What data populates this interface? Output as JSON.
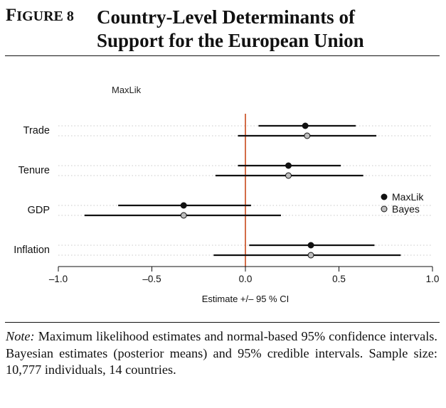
{
  "figure": {
    "label": "Figure 8",
    "label_caps": "F",
    "label_rest": "IGURE 8",
    "title_line1": "Country-Level Determinants of",
    "title_line2": "Support for the European Union"
  },
  "note": {
    "lead": "Note:",
    "text": " Maximum likelihood estimates and normal-based 95% confidence intervals. Bayesian estimates (posterior means) and 95% credible intervals. Sample size: 10,777 individuals, 14 countries."
  },
  "chart_data": {
    "type": "scatter",
    "subtitle": "MaxLik",
    "xlabel": "Estimate +/– 95 % CI",
    "xlim": [
      -1.0,
      1.0
    ],
    "xticks": [
      -1.0,
      -0.5,
      0.0,
      0.5,
      1.0
    ],
    "xtick_labels": [
      "–1.0",
      "–0.5",
      "0.0",
      "0.5",
      "1.0"
    ],
    "reference_line": 0,
    "reference_color": "#c8481a",
    "grid": "dotted horizontal",
    "legend_position": "right",
    "categories": [
      "Trade",
      "Tenure",
      "GDP",
      "Inflation"
    ],
    "series": [
      {
        "name": "MaxLik",
        "marker_color": "#111111",
        "estimates": [
          0.32,
          0.23,
          -0.33,
          0.35
        ],
        "lower": [
          0.07,
          -0.04,
          -0.68,
          0.02
        ],
        "upper": [
          0.59,
          0.51,
          0.03,
          0.69
        ]
      },
      {
        "name": "Bayes",
        "marker_color": "#bdbdbd",
        "estimates": [
          0.33,
          0.23,
          -0.33,
          0.35
        ],
        "lower": [
          -0.04,
          -0.16,
          -0.86,
          -0.17
        ],
        "upper": [
          0.7,
          0.63,
          0.19,
          0.83
        ]
      }
    ]
  }
}
